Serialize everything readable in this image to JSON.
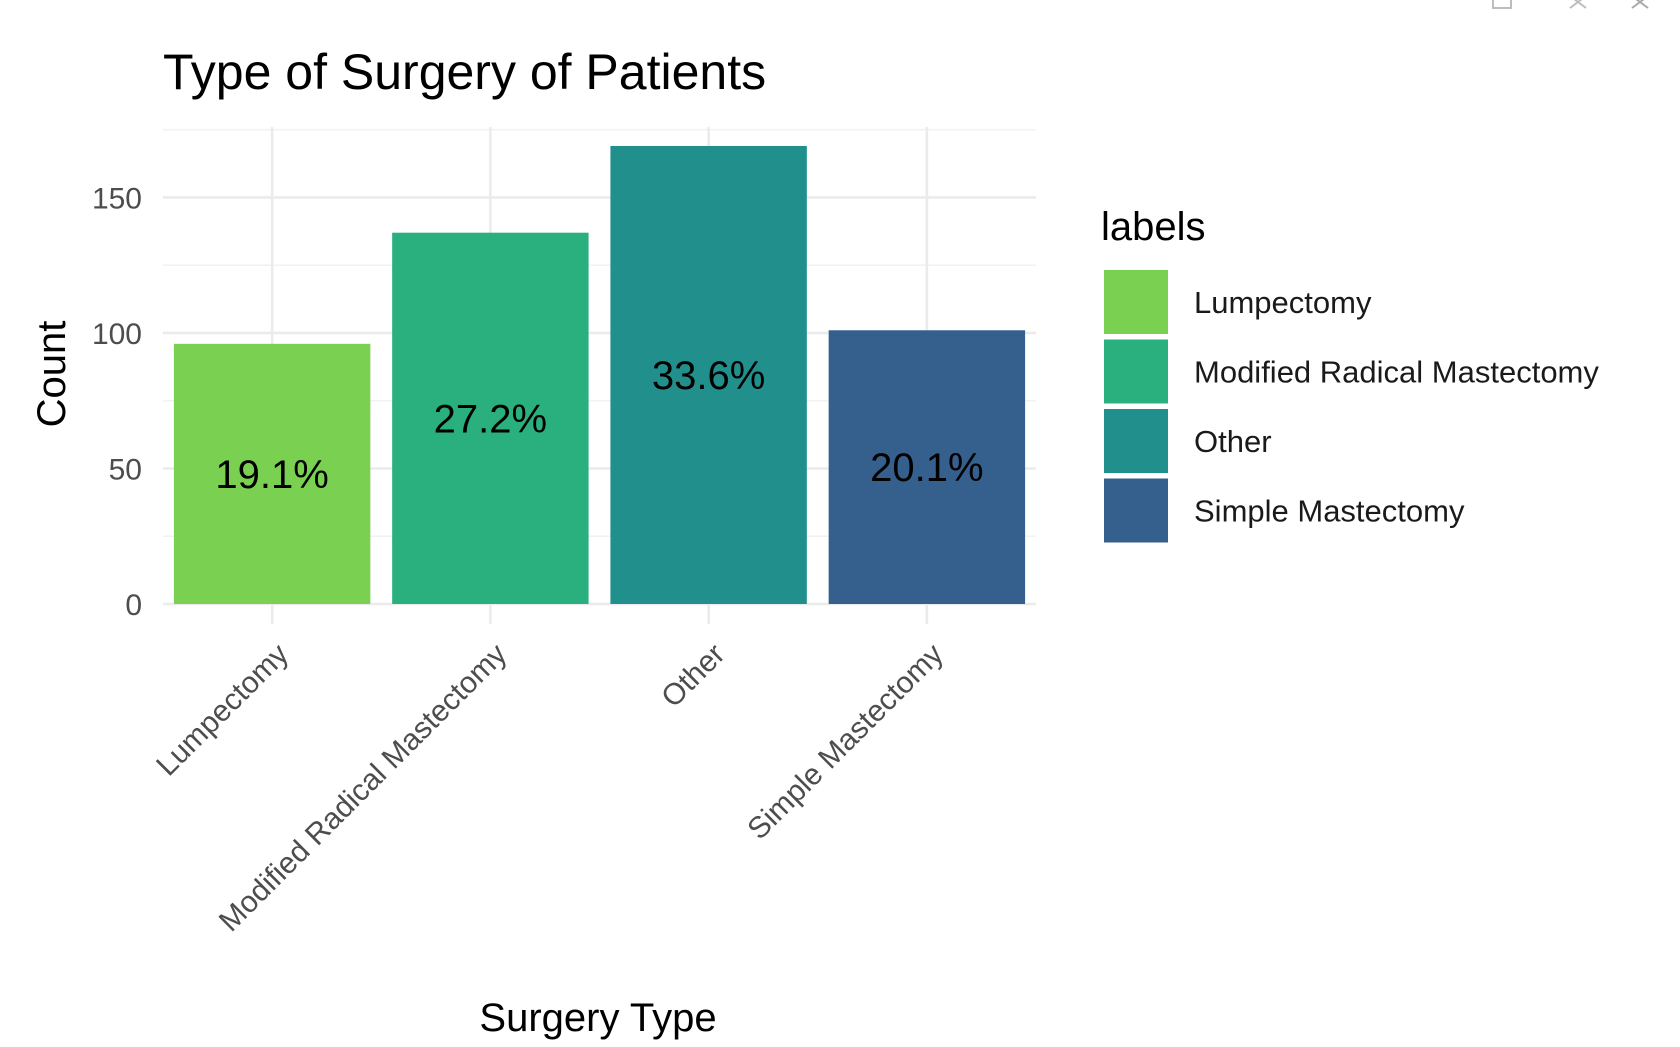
{
  "chart_data": {
    "type": "bar",
    "title": "Type of Surgery of Patients",
    "xlabel": "Surgery Type",
    "ylabel": "Count",
    "categories": [
      "Lumpectomy",
      "Modified Radical Mastectomy",
      "Other",
      "Simple Mastectomy"
    ],
    "values": [
      96,
      137,
      169,
      101
    ],
    "bar_labels": [
      "19.1%",
      "27.2%",
      "33.6%",
      "20.1%"
    ],
    "colors": [
      "#7AD151",
      "#2AB07F",
      "#21908C",
      "#355F8D"
    ],
    "ylim": [
      0,
      176
    ],
    "yticks": [
      0,
      50,
      100,
      150
    ],
    "ytick_labels": [
      "0",
      "50",
      "100",
      "150"
    ],
    "grid": true,
    "legend": {
      "title": "labels",
      "position": "right",
      "entries": [
        "Lumpectomy",
        "Modified Radical Mastectomy",
        "Other",
        "Simple Mastectomy"
      ]
    }
  },
  "window_controls": {
    "icons": [
      "popout-icon",
      "minimize-icon",
      "close-icon"
    ]
  }
}
